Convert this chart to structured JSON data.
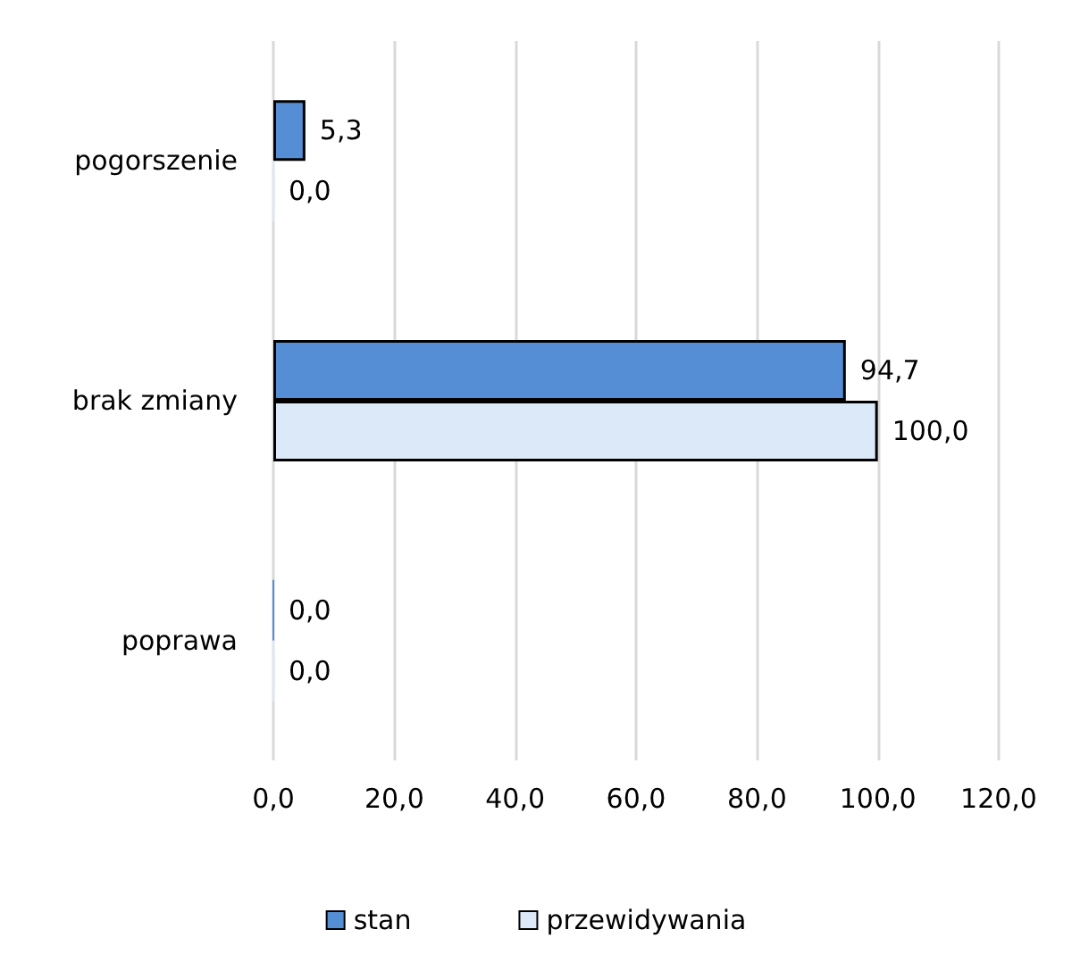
{
  "chart_data": {
    "type": "bar",
    "orientation": "horizontal",
    "categories": [
      "pogorszenie",
      "brak zmiany",
      "poprawa"
    ],
    "series": [
      {
        "name": "stan",
        "color": "#558ed5",
        "values": [
          5.3,
          94.7,
          0
        ],
        "value_labels": [
          "5,3",
          "94,7",
          "0,0"
        ]
      },
      {
        "name": "przewidywania",
        "color": "#dce9f8",
        "values": [
          0,
          100,
          0
        ],
        "value_labels": [
          "0,0",
          "100,0",
          "0,0"
        ]
      }
    ],
    "xlim": [
      0,
      120
    ],
    "xticks": [
      {
        "value": 0,
        "label": "0,0"
      },
      {
        "value": 20,
        "label": "20,0"
      },
      {
        "value": 40,
        "label": "40,0"
      },
      {
        "value": 60,
        "label": "60,0"
      },
      {
        "value": 80,
        "label": "80,0"
      },
      {
        "value": 100,
        "label": "100,0"
      },
      {
        "value": 120,
        "label": "120,0"
      }
    ],
    "grid": "x",
    "legend": "bottom"
  }
}
